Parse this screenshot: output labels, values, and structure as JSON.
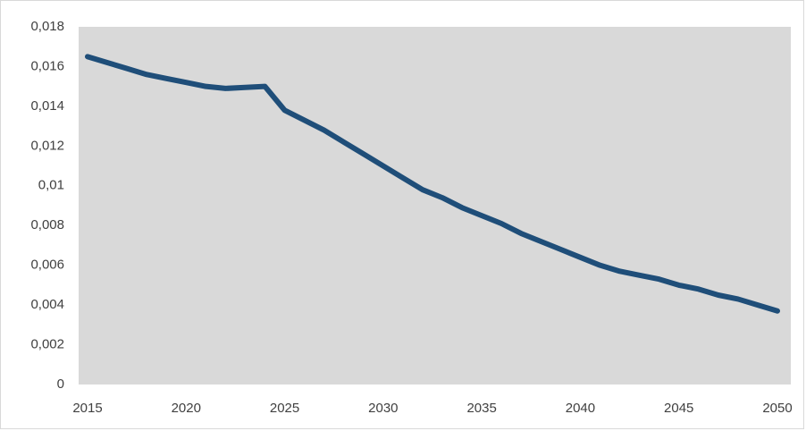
{
  "chart_data": {
    "type": "line",
    "x": [
      2015,
      2016,
      2017,
      2018,
      2019,
      2020,
      2021,
      2022,
      2023,
      2024,
      2025,
      2026,
      2027,
      2028,
      2029,
      2030,
      2031,
      2032,
      2033,
      2034,
      2035,
      2036,
      2037,
      2038,
      2039,
      2040,
      2041,
      2042,
      2043,
      2044,
      2045,
      2046,
      2047,
      2048,
      2049,
      2050
    ],
    "series": [
      {
        "color": "#1f4e79",
        "values": [
          0.0165,
          0.0162,
          0.0159,
          0.0156,
          0.0154,
          0.0152,
          0.015,
          0.0149,
          0.01495,
          0.015,
          0.0138,
          0.0133,
          0.0128,
          0.0122,
          0.0116,
          0.011,
          0.0104,
          0.0098,
          0.0094,
          0.0089,
          0.0085,
          0.0081,
          0.0076,
          0.0072,
          0.0068,
          0.0064,
          0.006,
          0.0057,
          0.0055,
          0.0053,
          0.005,
          0.0048,
          0.0045,
          0.0043,
          0.004,
          0.0037
        ]
      }
    ],
    "xlim": [
      2015,
      2050
    ],
    "xticks": [
      2015,
      2020,
      2025,
      2030,
      2035,
      2040,
      2045,
      2050
    ],
    "ylim": [
      0,
      0.018
    ],
    "yticks": [
      0,
      {
        "value": 0.002,
        "label": "0,002"
      },
      {
        "value": 0.004,
        "label": "0,004"
      },
      {
        "value": 0.006,
        "label": "0,006"
      },
      {
        "value": 0.008,
        "label": "0,008"
      },
      {
        "value": 0.01,
        "label": "0,01"
      },
      {
        "value": 0.012,
        "label": "0,012"
      },
      {
        "value": 0.014,
        "label": "0,014"
      },
      {
        "value": 0.016,
        "label": "0,016"
      },
      {
        "value": 0.018,
        "label": "0,018"
      }
    ],
    "grid": false
  }
}
